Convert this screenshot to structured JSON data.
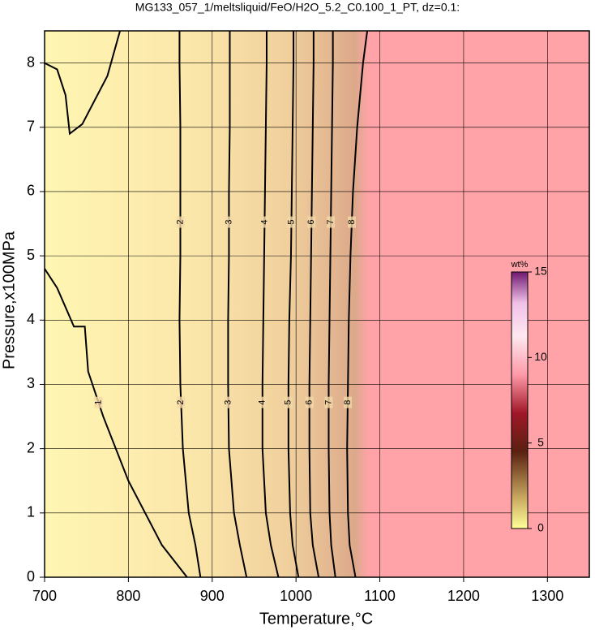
{
  "chart_data": {
    "type": "contour",
    "title": "MG133_057_1/meltsliquid/FeO/H2O_5.2_C0.100_1_PT, dz=0.1:",
    "xlabel": "Temperature,°C",
    "ylabel": "Pressure,x100MPa",
    "xlim": [
      700,
      1350
    ],
    "ylim": [
      0,
      8.5
    ],
    "xticks": [
      700,
      800,
      900,
      1000,
      1100,
      1200,
      1300
    ],
    "yticks": [
      0,
      1,
      2,
      3,
      4,
      5,
      6,
      7,
      8
    ],
    "grid": true,
    "contours": [
      {
        "level": 1,
        "x": [
          700,
          715,
          735,
          748,
          752,
          770,
          800,
          840,
          870,
          null,
          700,
          715,
          725,
          730,
          745,
          775,
          790
        ],
        "y": [
          4.8,
          4.5,
          3.9,
          3.9,
          3.2,
          2.5,
          1.5,
          0.5,
          0,
          null,
          8.0,
          7.9,
          7.5,
          6.9,
          7.05,
          7.8,
          8.5
        ]
      },
      {
        "level": 2,
        "x": [
          886,
          880,
          872,
          865,
          862,
          861,
          862,
          862,
          862,
          861,
          861
        ],
        "y": [
          0,
          0.5,
          1,
          2,
          3,
          4,
          5,
          6,
          7,
          8,
          8.5
        ]
      },
      {
        "level": 3,
        "x": [
          941,
          933,
          926,
          920,
          919,
          919,
          920,
          920,
          921,
          921,
          921
        ],
        "y": [
          0,
          0.5,
          1,
          2,
          3,
          4,
          5,
          6,
          7,
          8,
          8.5
        ]
      },
      {
        "level": 4,
        "x": [
          979,
          970,
          964,
          960,
          960,
          961,
          962,
          963,
          964,
          965,
          965
        ],
        "y": [
          0,
          0.5,
          1,
          2,
          3,
          4,
          5,
          6,
          7,
          8,
          8.5
        ]
      },
      {
        "level": 5,
        "x": [
          1003,
          996,
          993,
          991,
          991,
          992,
          994,
          995,
          996,
          997,
          997
        ],
        "y": [
          0,
          0.5,
          1,
          2,
          3,
          4,
          5,
          6,
          7,
          8,
          8.5
        ]
      },
      {
        "level": 6,
        "x": [
          1027,
          1020,
          1017,
          1016,
          1016,
          1017,
          1018,
          1019,
          1020,
          1021,
          1021
        ],
        "y": [
          0,
          0.5,
          1,
          2,
          3,
          4,
          5,
          6,
          7,
          8,
          8.5
        ]
      },
      {
        "level": 7,
        "x": [
          1047,
          1042,
          1040,
          1039,
          1039,
          1040,
          1041,
          1042,
          1043,
          1044,
          1044
        ],
        "y": [
          0,
          0.5,
          1,
          2,
          3,
          4,
          5,
          6,
          7,
          8,
          8.5
        ]
      },
      {
        "level": 8,
        "x": [
          1071,
          1064,
          1062,
          1061,
          1062,
          1063,
          1065,
          1068,
          1073,
          1080,
          1085
        ],
        "y": [
          0,
          0.5,
          1,
          2,
          3,
          4,
          5,
          6,
          7,
          8,
          8.5
        ]
      }
    ],
    "colorbar": {
      "label": "wt%",
      "clim": [
        0,
        15
      ],
      "ticks": [
        0,
        5,
        10,
        15
      ]
    }
  }
}
